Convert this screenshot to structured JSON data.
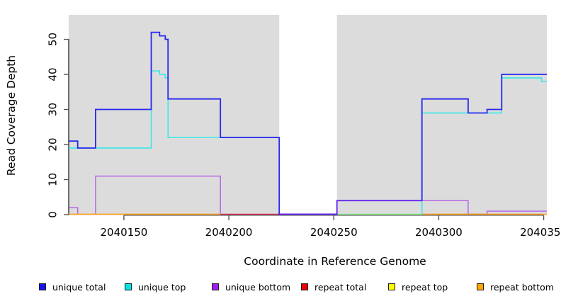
{
  "axes": {
    "x_title": "Coordinate in Reference Genome",
    "y_title": "Read Coverage Depth"
  },
  "chart_data": {
    "type": "line",
    "subtype": "step-coverage",
    "title": "",
    "xlabel": "Coordinate in Reference Genome",
    "ylabel": "Read Coverage Depth",
    "xlim": [
      2040123.7,
      2040351.5
    ],
    "ylim": [
      0,
      57
    ],
    "grid": false,
    "legend_position": "bottom",
    "x_ticks": [
      2040150,
      2040200,
      2040250,
      2040300,
      2040350
    ],
    "x_tick_labels": [
      "2040150",
      "2040200",
      "2040250",
      "2040300",
      "2040350"
    ],
    "y_ticks": [
      0,
      10,
      20,
      30,
      40,
      50
    ],
    "y_tick_labels": [
      "0",
      "10",
      "20",
      "30",
      "40",
      "50"
    ],
    "colors": {
      "axis": "#222222",
      "tick": "#555555",
      "shaded_region": "#DCDCDC",
      "plot_background": "#FFFFFF"
    },
    "shaded_regions": [
      {
        "x0": 2040123.7,
        "x1": 2040224,
        "color": "#DCDCDC"
      },
      {
        "x0": 2040251.5,
        "x1": 2040351.5,
        "color": "#DCDCDC"
      }
    ],
    "legend": [
      {
        "label": "unique total",
        "color": "#1414EE"
      },
      {
        "label": "unique top",
        "color": "#00E5E5"
      },
      {
        "label": "unique bottom",
        "color": "#A020F0"
      },
      {
        "label": "repeat total",
        "color": "#EE0000"
      },
      {
        "label": "repeat top",
        "color": "#FFFF00"
      },
      {
        "label": "repeat bottom",
        "color": "#FFA500"
      }
    ],
    "series": [
      {
        "name": "unique total",
        "color": "#2828EE",
        "width": 1.8,
        "opacity": 1,
        "z": 4,
        "segments": [
          [
            [
              2040123.7,
              21
            ],
            [
              2040128,
              21
            ],
            [
              2040128,
              19
            ],
            [
              2040136.5,
              19
            ],
            [
              2040136.5,
              30
            ],
            [
              2040163,
              30
            ],
            [
              2040163,
              52
            ],
            [
              2040167,
              52
            ],
            [
              2040167,
              51
            ],
            [
              2040169.7,
              51
            ],
            [
              2040169.7,
              50
            ],
            [
              2040171,
              50
            ],
            [
              2040171,
              33
            ],
            [
              2040196,
              33
            ],
            [
              2040196,
              22
            ],
            [
              2040224,
              22
            ],
            [
              2040224,
              0
            ],
            [
              2040251.5,
              0
            ],
            [
              2040251.5,
              4
            ],
            [
              2040292,
              4
            ],
            [
              2040292,
              33
            ],
            [
              2040314,
              33
            ],
            [
              2040314,
              29
            ],
            [
              2040323,
              29
            ],
            [
              2040323,
              30
            ],
            [
              2040330,
              30
            ],
            [
              2040330,
              40
            ],
            [
              2040351.5,
              40
            ]
          ]
        ]
      },
      {
        "name": "unique top",
        "color": "#2EE8E8",
        "width": 1.4,
        "opacity": 1,
        "z": 1,
        "segments": [
          [
            [
              2040123.7,
              19
            ],
            [
              2040163,
              19
            ],
            [
              2040163,
              41
            ],
            [
              2040167,
              41
            ],
            [
              2040167,
              40
            ],
            [
              2040169.7,
              40
            ],
            [
              2040169.7,
              39
            ],
            [
              2040171,
              39
            ],
            [
              2040171,
              22
            ],
            [
              2040224,
              22
            ]
          ],
          [
            [
              2040251.5,
              0
            ],
            [
              2040292,
              0
            ],
            [
              2040292,
              29
            ],
            [
              2040330,
              29
            ],
            [
              2040330,
              39
            ],
            [
              2040349,
              39
            ],
            [
              2040349,
              38
            ],
            [
              2040351.5,
              38
            ]
          ]
        ]
      },
      {
        "name": "unique bottom",
        "color": "#A020F0",
        "width": 1.5,
        "opacity": 0.62,
        "z": 5,
        "segments": [
          [
            [
              2040123.7,
              2
            ],
            [
              2040128,
              2
            ],
            [
              2040128,
              0
            ]
          ],
          [
            [
              2040136.5,
              0
            ],
            [
              2040136.5,
              11
            ],
            [
              2040196,
              11
            ],
            [
              2040196,
              0
            ]
          ],
          [
            [
              2040224,
              0
            ],
            [
              2040251.5,
              0
            ],
            [
              2040251.5,
              4
            ],
            [
              2040314,
              4
            ],
            [
              2040314,
              0
            ],
            [
              2040323,
              0
            ],
            [
              2040323,
              1
            ],
            [
              2040351.5,
              1
            ]
          ]
        ]
      },
      {
        "name": "repeat total",
        "color": "#D8214A",
        "width": 1.4,
        "opacity": 0.95,
        "z": 2,
        "segments": [
          [
            [
              2040196,
              0
            ],
            [
              2040224,
              0
            ]
          ]
        ]
      },
      {
        "name": "repeat top",
        "color": "#F0FF30",
        "width": 1.2,
        "opacity": 0.55,
        "z": 3,
        "segments": [
          [
            [
              2040251.5,
              0
            ],
            [
              2040292,
              0
            ]
          ]
        ]
      },
      {
        "name": "repeat bottom",
        "color": "#FFA020",
        "width": 1.6,
        "opacity": 1,
        "z": 6,
        "segments": [
          [
            [
              2040123.7,
              0
            ],
            [
              2040196,
              0
            ]
          ],
          [
            [
              2040292,
              0
            ],
            [
              2040351.5,
              0
            ]
          ]
        ]
      }
    ]
  }
}
